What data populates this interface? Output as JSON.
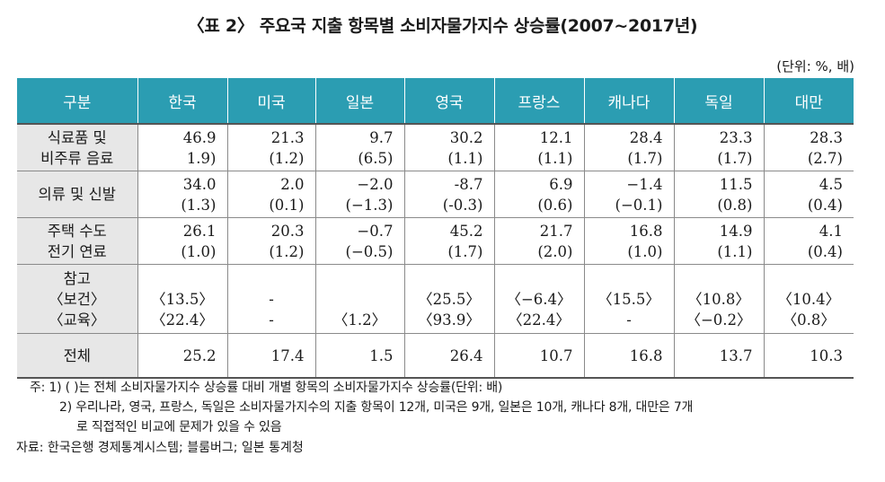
{
  "title": "〈표 2〉 주요국 지출 항목별 소비자물가지수 상승률(2007~2017년)",
  "unit": "(단위: %, 배)",
  "columns": [
    "구분",
    "한국",
    "미국",
    "일본",
    "영국",
    "프랑스",
    "캐나다",
    "독일",
    "대만"
  ],
  "rows": [
    {
      "label": [
        "식료품 및",
        "비주류 음료"
      ],
      "cells": [
        [
          "46.9",
          "1.9)"
        ],
        [
          "21.3",
          "(1.2)"
        ],
        [
          "9.7",
          "(6.5)"
        ],
        [
          "30.2",
          "(1.1)"
        ],
        [
          "12.1",
          "(1.1)"
        ],
        [
          "28.4",
          "(1.7)"
        ],
        [
          "23.3",
          "(1.7)"
        ],
        [
          "28.3",
          "(2.7)"
        ]
      ]
    },
    {
      "label": [
        "의류 및 신발"
      ],
      "cells": [
        [
          "34.0",
          "(1.3)"
        ],
        [
          "2.0",
          "(0.1)"
        ],
        [
          "−2.0",
          "(−1.3)"
        ],
        [
          "-8.7",
          "(-0.3)"
        ],
        [
          "6.9",
          "(0.6)"
        ],
        [
          "−1.4",
          "(−0.1)"
        ],
        [
          "11.5",
          "(0.8)"
        ],
        [
          "4.5",
          "(0.4)"
        ]
      ]
    },
    {
      "label": [
        "주택 수도",
        "전기 연료"
      ],
      "cells": [
        [
          "26.1",
          "(1.0)"
        ],
        [
          "20.3",
          "(1.2)"
        ],
        [
          "−0.7",
          "(−0.5)"
        ],
        [
          "45.2",
          "(1.7)"
        ],
        [
          "21.7",
          "(2.0)"
        ],
        [
          "16.8",
          "(1.0)"
        ],
        [
          "14.9",
          "(1.1)"
        ],
        [
          "4.1",
          "(0.4)"
        ]
      ]
    },
    {
      "label": [
        "참고",
        "〈보건〉",
        "〈교육〉"
      ],
      "cells": [
        [
          "",
          "〈13.5〉",
          "〈22.4〉"
        ],
        [
          "",
          "-",
          "-"
        ],
        [
          "",
          "",
          "〈1.2〉"
        ],
        [
          "",
          "〈25.5〉",
          "〈93.9〉"
        ],
        [
          "",
          "〈−6.4〉",
          "〈22.4〉"
        ],
        [
          "",
          "〈15.5〉",
          "-"
        ],
        [
          "",
          "〈10.8〉",
          "〈−0.2〉"
        ],
        [
          "",
          "〈10.4〉",
          "〈0.8〉"
        ]
      ]
    },
    {
      "label": [
        "전체"
      ],
      "cells": [
        [
          "25.2"
        ],
        [
          "17.4"
        ],
        [
          "1.5"
        ],
        [
          "26.4"
        ],
        [
          "10.7"
        ],
        [
          "16.8"
        ],
        [
          "13.7"
        ],
        [
          "10.3"
        ]
      ]
    }
  ],
  "notes": [
    "주: 1) ( )는 전체 소비자물가지수 상승률 대비 개별 항목의 소비자물가지수 상승률(단위: 배)",
    "2) 우리나라, 영국, 프랑스, 독일은 소비자물가지수의 지출 항목이 12개, 미국은 9개, 일본은 10개, 캐나다 8개, 대만은 7개",
    "로 직접적인 비교에 문제가 있을 수 있음"
  ],
  "source": "자료: 한국은행 경제통계시스템; 블룸버그; 일본 통계청"
}
